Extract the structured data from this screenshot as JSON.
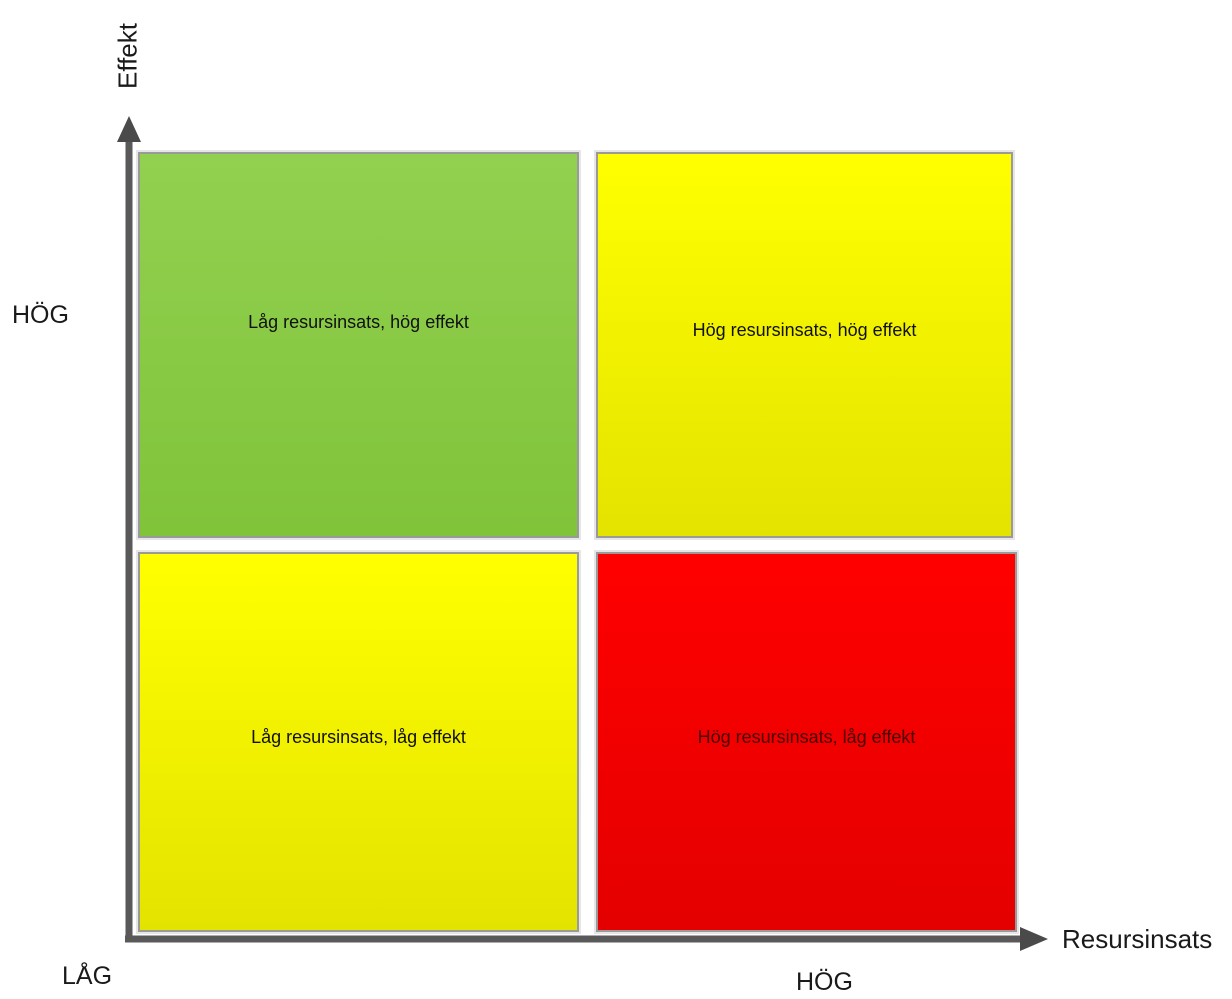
{
  "axes": {
    "y_title": "Effekt",
    "x_title": "Resursinsats",
    "y_high": "HÖG",
    "origin_low": "LÅG",
    "x_high": "HÖG"
  },
  "quadrants": {
    "top_left": "Låg resursinsats, hög effekt",
    "top_right": "Hög resursinsats, hög effekt",
    "bottom_left": "Låg resursinsats, låg effekt",
    "bottom_right": "Hög resursinsats, låg effekt"
  },
  "colors": {
    "green": "#92d050",
    "yellow": "#ffff00",
    "red": "#ff0000",
    "axis": "#595959"
  }
}
